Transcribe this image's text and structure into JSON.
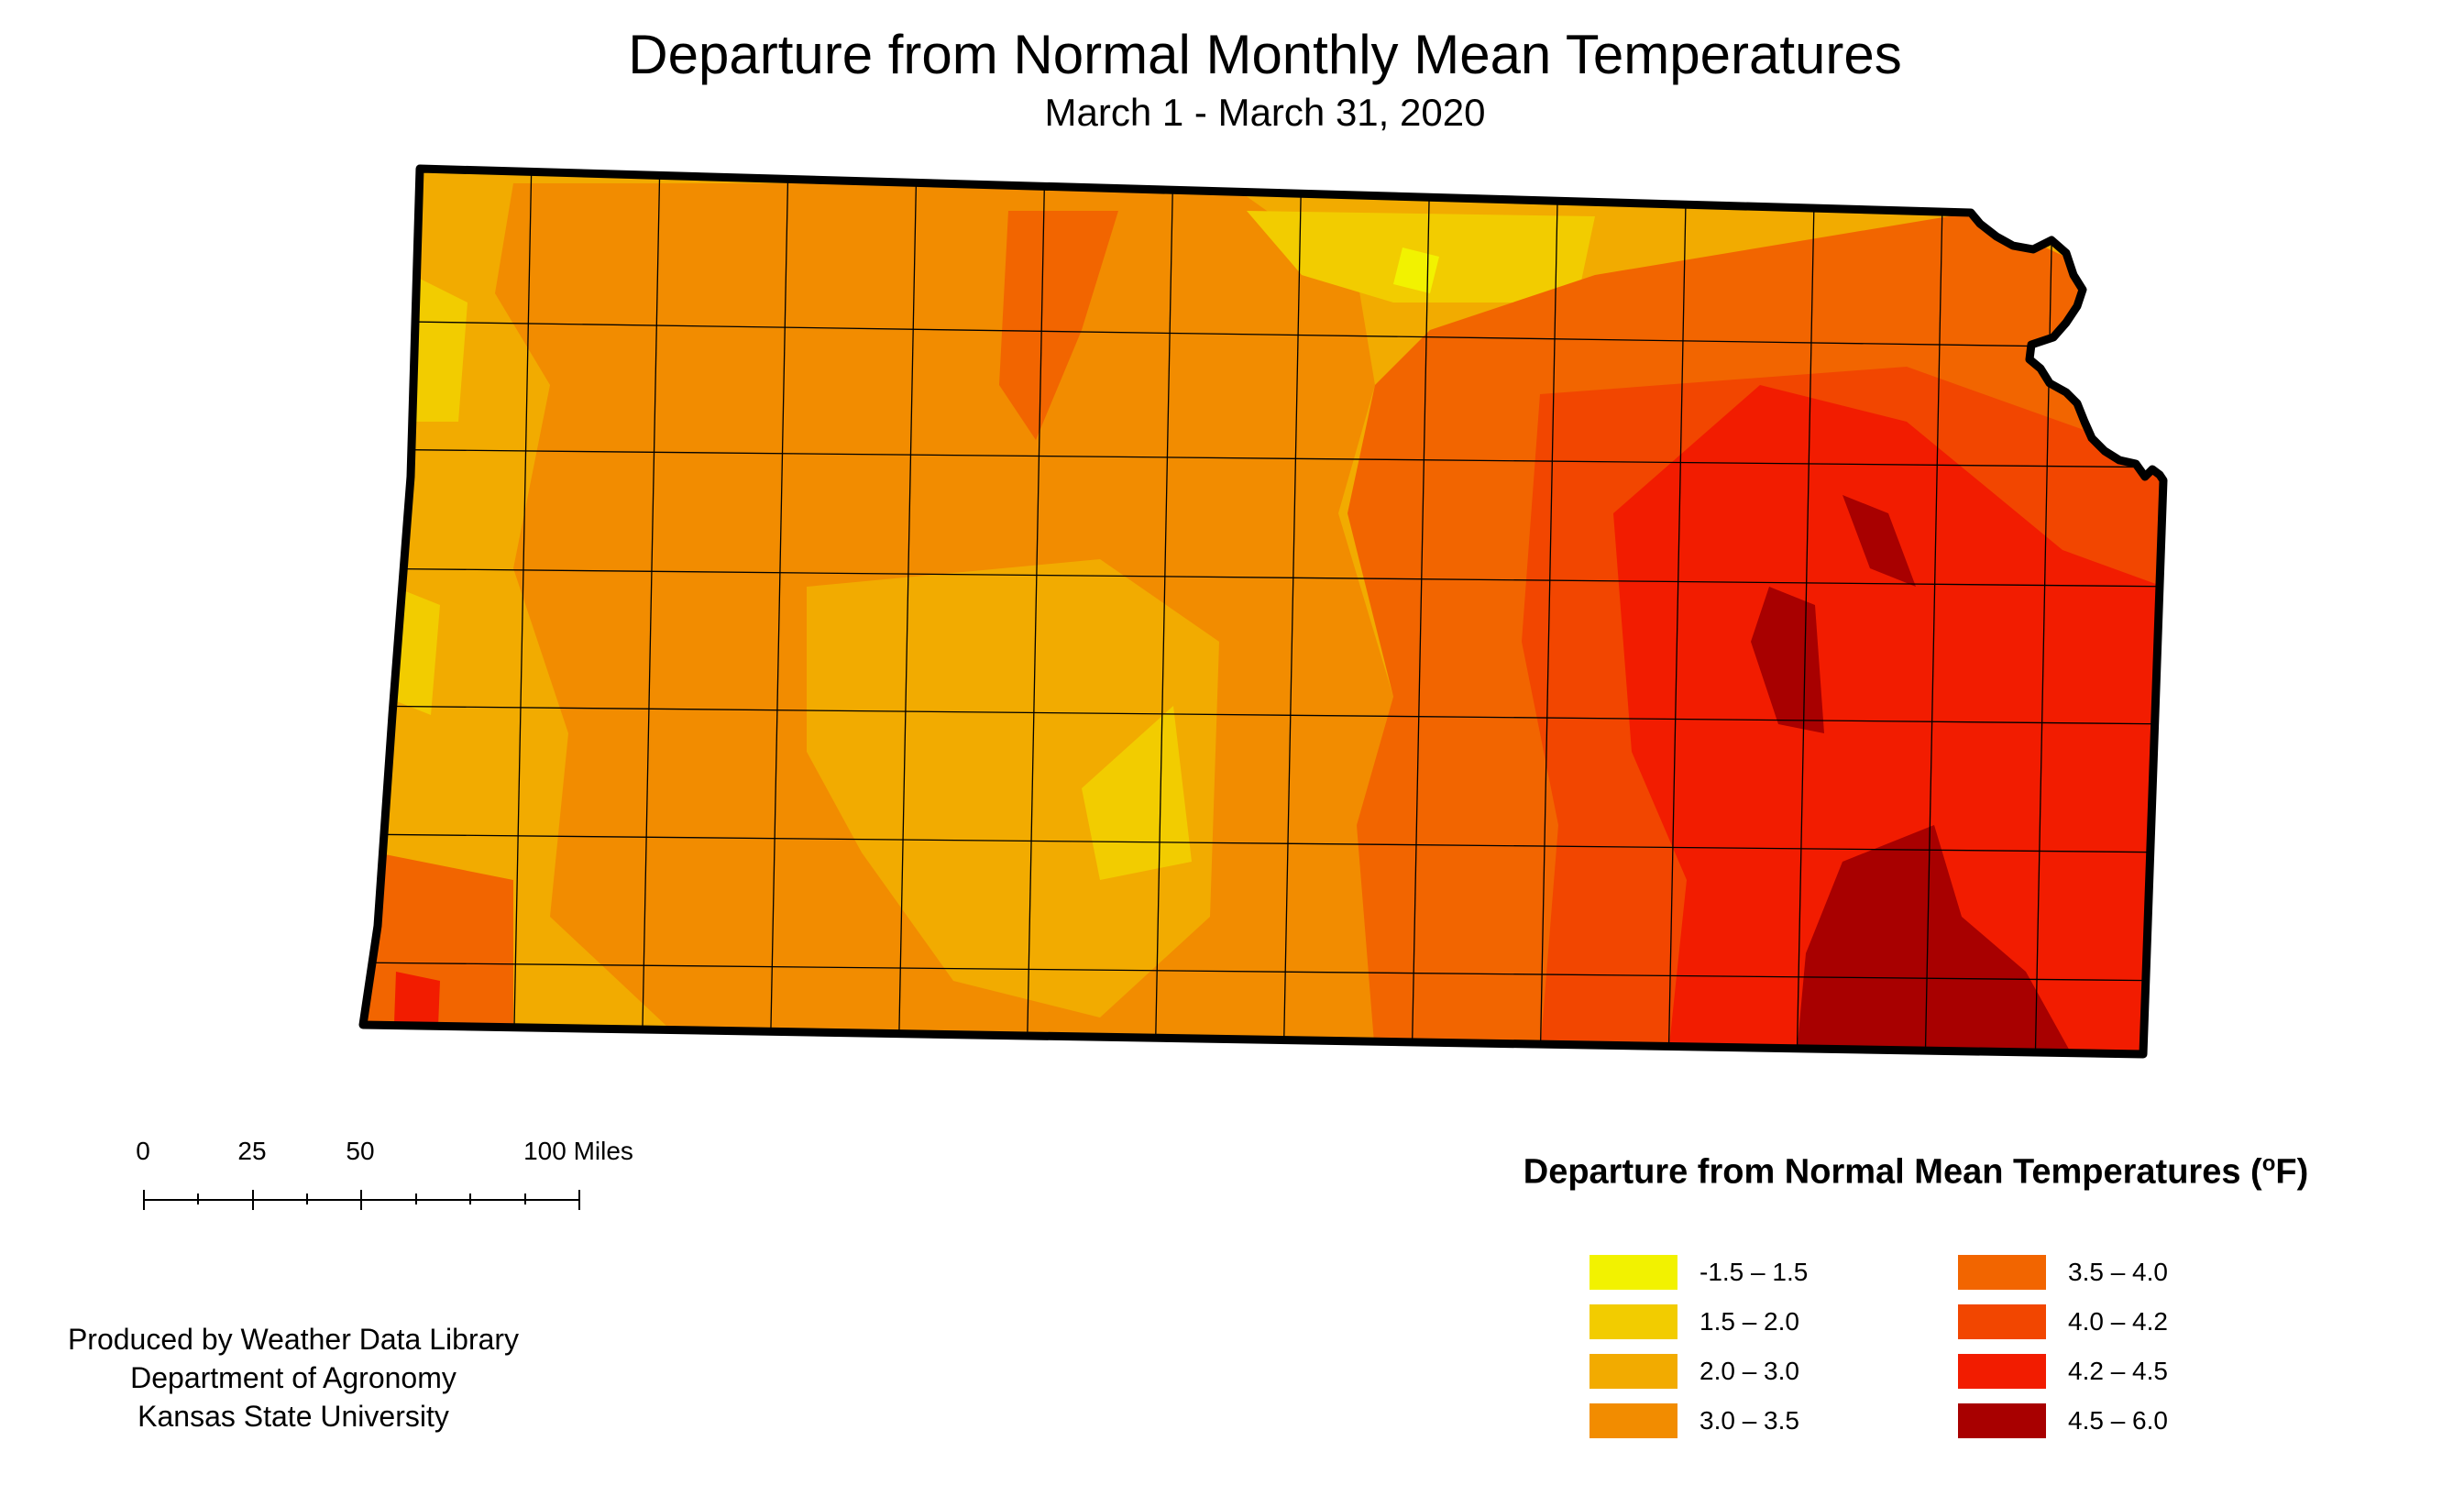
{
  "map": {
    "title": "Departure from Normal Monthly Mean Temperatures",
    "subtitle": "March 1 - March 31, 2020",
    "region": "Kansas",
    "state_outline_color": "#000000",
    "county_line_color": "#000000"
  },
  "scale_bar": {
    "labels": [
      "0",
      "25",
      "50",
      "100 Miles"
    ]
  },
  "legend": {
    "title": "Departure from Normal Mean Temperatures (",
    "unit_sup": "o",
    "unit_suffix": "F)",
    "items": [
      {
        "label": "-1.5 – 1.5",
        "color": "#f2f200"
      },
      {
        "label": "1.5 – 2.0",
        "color": "#f2cc00"
      },
      {
        "label": "2.0 – 3.0",
        "color": "#f2ab00"
      },
      {
        "label": "3.0 – 3.5",
        "color": "#f28c00"
      },
      {
        "label": "3.5 – 4.0",
        "color": "#f26500"
      },
      {
        "label": "4.0 – 4.2",
        "color": "#f24600"
      },
      {
        "label": "4.2 – 4.5",
        "color": "#f21c00"
      },
      {
        "label": "4.5 – 6.0",
        "color": "#a80000"
      }
    ]
  },
  "credits": {
    "line1": "Produced by Weather Data Library",
    "line2": "Department of Agronomy",
    "line3": "Kansas State University"
  }
}
